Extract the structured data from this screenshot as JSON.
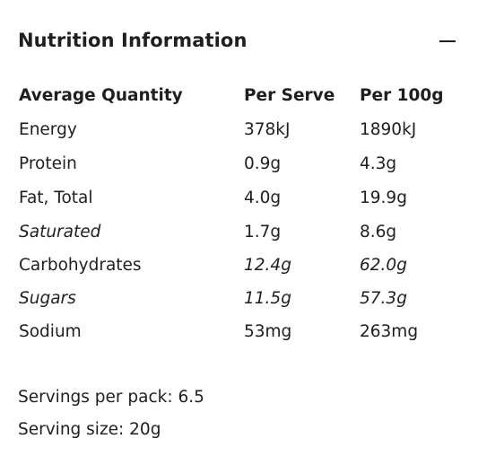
{
  "panel": {
    "title": "Nutrition Information",
    "collapse_icon": "minus-icon"
  },
  "table": {
    "headers": [
      "Average Quantity",
      "Per Serve",
      "Per 100g"
    ],
    "rows": [
      {
        "name": "Energy",
        "per_serve": "378kJ",
        "per_100g": "1890kJ"
      },
      {
        "name": "Protein",
        "per_serve": "0.9g",
        "per_100g": "4.3g"
      },
      {
        "name": "Fat, Total",
        "per_serve": "4.0g",
        "per_100g": "19.9g"
      },
      {
        "name": "Saturated",
        "per_serve": "1.7g",
        "per_100g": "8.6g"
      },
      {
        "name": "Carbohydrates",
        "per_serve": "12.4g",
        "per_100g": "62.0g"
      },
      {
        "name": "Sugars",
        "per_serve": "11.5g",
        "per_100g": "57.3g"
      },
      {
        "name": "Sodium",
        "per_serve": "53mg",
        "per_100g": "263mg"
      }
    ]
  },
  "footer": {
    "servings_per_pack": "Servings per pack: 6.5",
    "serving_size": "Serving size: 20g"
  }
}
